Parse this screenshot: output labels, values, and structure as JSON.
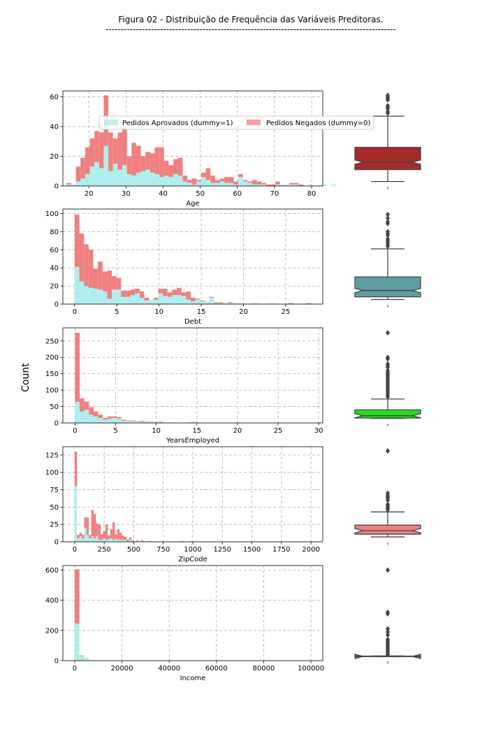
{
  "figure": {
    "title": "Figura 02 - Distribuição de Frequência das Variáveis Preditoras.",
    "underline": "------------------------------------------------------------------------------------------------",
    "ylabel": "Count",
    "legend": {
      "approved": "Pedidos Aprovados (dummy=1)",
      "denied": "Pedidos Negados (dummy=0)"
    },
    "colors": {
      "approved": "#afeeee",
      "denied": "#f08080",
      "grid": "#b0b0b0"
    }
  },
  "chart_data": [
    {
      "type": "histogram",
      "xlabel": "Age",
      "xlim": [
        13,
        83
      ],
      "ylim": [
        0,
        64
      ],
      "xticks": [
        20,
        30,
        40,
        50,
        60,
        70,
        80
      ],
      "yticks": [
        0,
        20,
        40,
        60
      ],
      "bin_start": 14,
      "bin_width": 1.25,
      "approved": [
        1,
        1,
        3,
        5,
        8,
        13,
        16,
        12,
        27,
        10,
        15,
        11,
        14,
        8,
        7,
        9,
        10,
        11,
        9,
        8,
        6,
        7,
        6,
        8,
        7,
        3,
        2,
        1,
        3,
        6,
        4,
        2,
        2,
        3,
        2,
        2,
        1,
        6,
        3,
        2,
        1,
        1,
        1,
        0,
        0,
        1,
        1,
        1,
        1,
        1,
        0,
        0,
        1,
        0,
        0,
        1,
        0,
        1
      ],
      "denied": [
        1,
        0,
        10,
        14,
        18,
        19,
        21,
        24,
        34,
        26,
        17,
        25,
        25,
        12,
        22,
        18,
        10,
        12,
        13,
        18,
        20,
        10,
        8,
        10,
        12,
        4,
        2,
        4,
        1,
        3,
        8,
        5,
        2,
        2,
        4,
        4,
        2,
        2,
        1,
        1,
        3,
        2,
        1,
        1,
        1,
        2,
        0,
        0,
        1,
        1,
        1,
        0,
        0,
        0,
        0,
        0,
        0,
        0
      ],
      "box": {
        "color": "#a52a2a",
        "min": 3,
        "q1": 11,
        "median": 16,
        "q3": 26,
        "max": 47,
        "outliers": [
          49,
          50,
          52,
          53,
          54,
          58,
          59,
          60,
          61
        ]
      }
    },
    {
      "type": "histogram",
      "xlabel": "Debt",
      "xlim": [
        -1.4,
        29.4
      ],
      "ylim": [
        0,
        105
      ],
      "xticks": [
        0,
        5,
        10,
        15,
        20,
        25
      ],
      "yticks": [
        0,
        20,
        40,
        60,
        80,
        100
      ],
      "bin_start": 0,
      "bin_width": 0.55,
      "approved": [
        41,
        25,
        20,
        18,
        17,
        16,
        14,
        6,
        16,
        16,
        8,
        8,
        10,
        12,
        7,
        4,
        5,
        5,
        12,
        9,
        8,
        10,
        10,
        9,
        5,
        3,
        5,
        3,
        3,
        7,
        1,
        1,
        1,
        1,
        1,
        1,
        0,
        0,
        1,
        1,
        0,
        0,
        1,
        0,
        0,
        0,
        0,
        0,
        0,
        0,
        0,
        0
      ],
      "denied": [
        58,
        53,
        46,
        42,
        22,
        31,
        22,
        31,
        15,
        13,
        7,
        7,
        6,
        5,
        7,
        3,
        0,
        2,
        5,
        8,
        5,
        6,
        8,
        4,
        9,
        4,
        1,
        1,
        0,
        1,
        1,
        1,
        0,
        1,
        0,
        0,
        0,
        0,
        0,
        0,
        0,
        0,
        0,
        0,
        0,
        0,
        1,
        0,
        0,
        0,
        1,
        0
      ],
      "box": {
        "color": "#5f9ea0",
        "min": 5,
        "q1": 8,
        "median": 15,
        "q3": 30,
        "max": 61,
        "outliers": [
          64,
          66,
          68,
          70,
          72,
          76,
          78,
          80,
          89,
          91,
          95,
          99
        ]
      }
    },
    {
      "type": "histogram",
      "xlabel": "YearsEmployed",
      "xlim": [
        -1.5,
        30.5
      ],
      "ylim": [
        0,
        290
      ],
      "xticks": [
        0,
        5,
        10,
        15,
        20,
        25,
        30
      ],
      "yticks": [
        0,
        50,
        100,
        150,
        200,
        250
      ],
      "bin_start": 0,
      "bin_width": 0.57,
      "approved": [
        65,
        35,
        40,
        25,
        20,
        15,
        10,
        13,
        15,
        13,
        7,
        7,
        5,
        4,
        5,
        3,
        5,
        3,
        2,
        1,
        1,
        2,
        1,
        1,
        2,
        2,
        1,
        1,
        1,
        1,
        0,
        0,
        1,
        0,
        0,
        0,
        0,
        0,
        0,
        0,
        0,
        1,
        0,
        0,
        0,
        0,
        0,
        0,
        0,
        0,
        0,
        0
      ],
      "denied": [
        210,
        40,
        25,
        23,
        15,
        10,
        5,
        7,
        5,
        5,
        3,
        1,
        2,
        1,
        2,
        1,
        0,
        0,
        2,
        0,
        0,
        0,
        0,
        0,
        0,
        1,
        0,
        0,
        0,
        0,
        0,
        0,
        0,
        0,
        0,
        0,
        0,
        0,
        0,
        0,
        0,
        0,
        0,
        0,
        0,
        0,
        0,
        0,
        0,
        0,
        0,
        0
      ],
      "box": {
        "color": "#22dd22",
        "min": 14,
        "q1": 15,
        "median": 22,
        "q3": 40,
        "max": 73,
        "outliers": [
          80,
          85,
          90,
          95,
          100,
          105,
          110,
          115,
          120,
          125,
          130,
          135,
          140,
          145,
          150,
          155,
          160,
          170,
          175,
          180,
          195,
          200,
          275
        ]
      }
    },
    {
      "type": "histogram",
      "xlabel": "ZipCode",
      "xlim": [
        -100,
        2100
      ],
      "ylim": [
        0,
        137
      ],
      "xticks": [
        0,
        250,
        500,
        750,
        1000,
        1250,
        1500,
        1750,
        2000
      ],
      "yticks": [
        0,
        25,
        50,
        75,
        100,
        125
      ],
      "bin_start": 0,
      "bin_width": 20,
      "approved": [
        80,
        5,
        8,
        5,
        20,
        10,
        5,
        8,
        5,
        8,
        3,
        3,
        5,
        3,
        4,
        5,
        3,
        4,
        3,
        3,
        3,
        3,
        1,
        3,
        1,
        1,
        1,
        0,
        1,
        1,
        1,
        1,
        0,
        0,
        0,
        0,
        0,
        0,
        0,
        0,
        0,
        0,
        0,
        0,
        0,
        0,
        0,
        0,
        0,
        0
      ],
      "denied": [
        50,
        5,
        5,
        5,
        15,
        25,
        5,
        38,
        35,
        18,
        22,
        8,
        10,
        22,
        5,
        13,
        25,
        7,
        15,
        10,
        6,
        4,
        2,
        3,
        1,
        0,
        1,
        0,
        1,
        0,
        0,
        0,
        1,
        0,
        0,
        0,
        0,
        0,
        0,
        0,
        0,
        0,
        0,
        0,
        0,
        1,
        0,
        0,
        0,
        1
      ],
      "box": {
        "color": "#f08080",
        "min": 7,
        "q1": 11,
        "median": 16,
        "q3": 24,
        "max": 43,
        "outliers": [
          46,
          48,
          50,
          52,
          54,
          60,
          63,
          65,
          67,
          70,
          131
        ]
      }
    },
    {
      "type": "histogram",
      "xlabel": "Income",
      "xlim": [
        -5000,
        105000
      ],
      "ylim": [
        0,
        630
      ],
      "xticks": [
        0,
        20000,
        40000,
        60000,
        80000,
        100000
      ],
      "yticks": [
        0,
        200,
        400,
        600
      ],
      "bin_start": 0,
      "bin_width": 2000,
      "approved": [
        245,
        30,
        15,
        3,
        3,
        2,
        1,
        0,
        0,
        0,
        0,
        0,
        0,
        0,
        0,
        0,
        0,
        0,
        0,
        0,
        0,
        0,
        0,
        0,
        0,
        0,
        0,
        0,
        0,
        0,
        0,
        0,
        0,
        0,
        0,
        0,
        0,
        0,
        0,
        0,
        0,
        0,
        0,
        0,
        0,
        0,
        0,
        0,
        0,
        1
      ],
      "denied": [
        360,
        5,
        2,
        1,
        0,
        0,
        0,
        0,
        0,
        0,
        0,
        0,
        0,
        0,
        0,
        0,
        0,
        0,
        0,
        0,
        0,
        0,
        0,
        0,
        0,
        0,
        0,
        0,
        0,
        0,
        0,
        0,
        0,
        0,
        0,
        0,
        0,
        0,
        0,
        0,
        0,
        0,
        0,
        0,
        0,
        0,
        0,
        0,
        0,
        0
      ],
      "box": {
        "color": "#808080",
        "min": 27,
        "q1": 27,
        "median": 28,
        "q3": 30,
        "max": 31,
        "outliers": [
          40,
          50,
          60,
          70,
          80,
          90,
          100,
          110,
          120,
          130,
          140,
          170,
          190,
          210,
          310,
          320,
          600
        ]
      }
    }
  ]
}
